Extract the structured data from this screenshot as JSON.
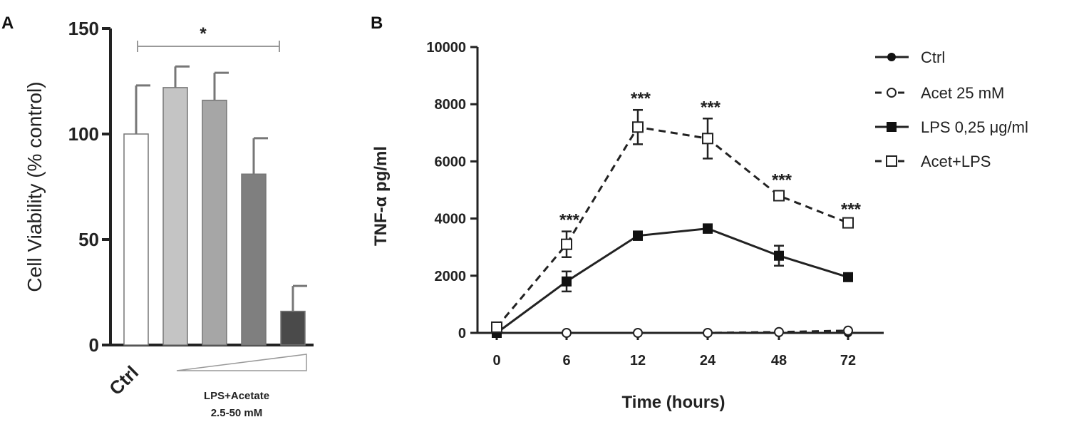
{
  "chart_data": [
    {
      "panel": "A",
      "type": "bar",
      "ylabel": "Cell Viability (% control)",
      "ylim": [
        0,
        150
      ],
      "yticks": [
        "0",
        "50",
        "100",
        "150"
      ],
      "categories": [
        "Ctrl",
        "",
        "",
        "",
        ""
      ],
      "values": [
        100,
        122,
        116,
        81,
        16
      ],
      "errors": [
        23,
        10,
        13,
        17,
        12
      ],
      "bar_colors": [
        "#ffffff",
        "#c4c4c4",
        "#a6a6a6",
        "#7f7f7f",
        "#4a4a4a"
      ],
      "significance": "*",
      "group_label_line1": "LPS+Acetate",
      "group_label_line2": "2.5-50 mM"
    },
    {
      "panel": "B",
      "type": "line",
      "xlabel": "Time (hours)",
      "ylabel": "TNF-α pg/ml",
      "ylim": [
        0,
        10000
      ],
      "yticks": [
        "0",
        "2000",
        "4000",
        "6000",
        "8000",
        "10000"
      ],
      "x": [
        "0",
        "6",
        "12",
        "24",
        "48",
        "72"
      ],
      "series": [
        {
          "name": "Ctrl",
          "values": [
            0,
            0,
            0,
            0,
            0,
            0
          ],
          "errors": [
            0,
            0,
            0,
            0,
            0,
            0
          ],
          "style": "solid",
          "marker": "filled-circle"
        },
        {
          "name": "Acet 25 mM",
          "values": [
            0,
            0,
            0,
            0,
            30,
            80
          ],
          "errors": [
            0,
            0,
            0,
            0,
            0,
            0
          ],
          "style": "dashed",
          "marker": "open-circle"
        },
        {
          "name": "LPS 0,25 μg/ml",
          "values": [
            0,
            1800,
            3400,
            3650,
            2700,
            1950
          ],
          "errors": [
            0,
            350,
            150,
            150,
            350,
            60
          ],
          "style": "solid",
          "marker": "filled-square"
        },
        {
          "name": "Acet+LPS",
          "values": [
            200,
            3100,
            7200,
            6800,
            4800,
            3850
          ],
          "errors": [
            0,
            450,
            600,
            700,
            150,
            80
          ],
          "style": "dashed",
          "marker": "open-square"
        }
      ],
      "annotations": [
        "",
        "***",
        "***",
        "***",
        "***",
        "***"
      ],
      "legend_position": "top-right"
    }
  ]
}
